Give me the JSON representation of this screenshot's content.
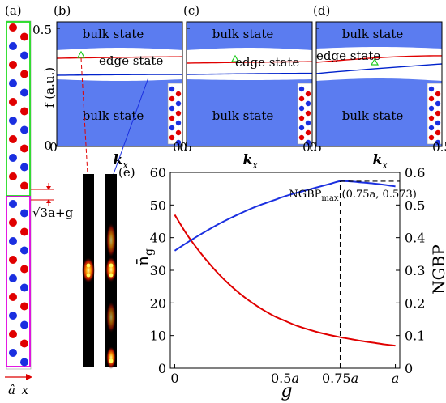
{
  "panel_labels": {
    "a": "(a)",
    "b": "(b)",
    "c": "(c)",
    "d": "(d)",
    "e": "(e)"
  },
  "band_panels": {
    "y_axis_label": "f (a.u.)",
    "y_ticks": [
      "0.5",
      "0"
    ],
    "x_ticks": [
      "0",
      "0.5"
    ],
    "x_axis_label": "k_x",
    "bulk_label": "bulk state",
    "edge_label": "edge state",
    "fill_color": "#5b7cf0",
    "edge_upper_color": "#e00000",
    "edge_lower_color": "#0022cc"
  },
  "structure_panel": {
    "width_annotation": "√3a+g",
    "direction_label": "â_x",
    "upper_box_color": "#22dd22",
    "lower_box_color": "#e000e0",
    "rod_colors": [
      "#e00000",
      "#1a2fe0"
    ]
  },
  "chart_data": {
    "type": "line",
    "panel": "(e)",
    "xlabel": "g",
    "x_ticks": [
      "0",
      "0.5a",
      "0.75a",
      "a"
    ],
    "x_tick_values": [
      0,
      0.5,
      0.75,
      1.0
    ],
    "xlim": [
      -0.02,
      1.02
    ],
    "y_left": {
      "label": "n̄g",
      "color": "#e00000",
      "ylim": [
        0,
        60
      ],
      "ticks": [
        "0",
        "10",
        "20",
        "30",
        "40",
        "50",
        "60"
      ]
    },
    "y_right": {
      "label": "NGBP",
      "color": "#1a2fe0",
      "ylim": [
        0,
        0.6
      ],
      "ticks": [
        "0",
        "0.1",
        "0.2",
        "0.3",
        "0.4",
        "0.5",
        "0.6"
      ]
    },
    "series": [
      {
        "name": "n̄g",
        "axis": "left",
        "color": "#e00000",
        "x": [
          0,
          0.05,
          0.1,
          0.15,
          0.2,
          0.25,
          0.3,
          0.35,
          0.4,
          0.45,
          0.5,
          0.55,
          0.6,
          0.65,
          0.7,
          0.75,
          0.8,
          0.85,
          0.9,
          0.95,
          1.0
        ],
        "values": [
          47,
          41.5,
          36.8,
          32.6,
          28.8,
          25.5,
          22.6,
          20.1,
          17.9,
          16.0,
          14.5,
          13.1,
          12.0,
          11.0,
          10.2,
          9.5,
          8.9,
          8.3,
          7.8,
          7.3,
          6.9
        ]
      },
      {
        "name": "NGBP",
        "axis": "right",
        "color": "#1a2fe0",
        "x": [
          0,
          0.05,
          0.1,
          0.15,
          0.2,
          0.25,
          0.3,
          0.35,
          0.4,
          0.45,
          0.5,
          0.55,
          0.6,
          0.65,
          0.7,
          0.75,
          0.8,
          0.85,
          0.9,
          0.95,
          1.0
        ],
        "values": [
          0.36,
          0.382,
          0.403,
          0.423,
          0.442,
          0.459,
          0.475,
          0.49,
          0.503,
          0.515,
          0.527,
          0.537,
          0.546,
          0.555,
          0.564,
          0.573,
          0.572,
          0.569,
          0.566,
          0.562,
          0.557
        ]
      }
    ],
    "annotation": {
      "label": "NGBPmax",
      "value_text": "(0.75a, 0.573)",
      "x": 0.75,
      "y": 0.573
    }
  }
}
